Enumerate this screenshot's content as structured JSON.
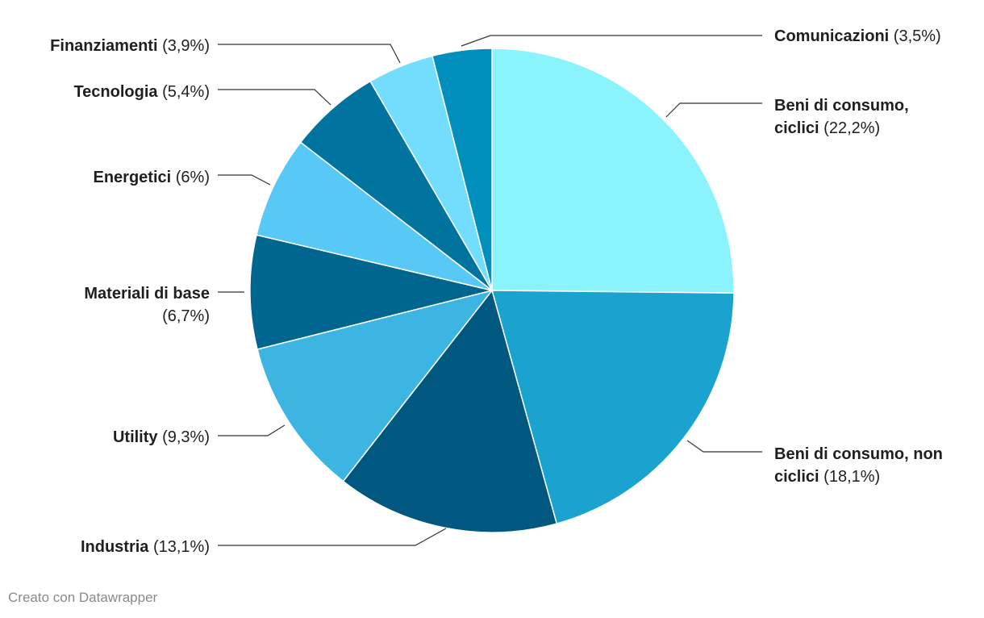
{
  "chart_data": {
    "type": "pie",
    "start_angle_deg": 0,
    "direction": "clockwise",
    "slices": [
      {
        "label_lines": [
          "Beni di consumo,",
          "ciclici"
        ],
        "value": 22.2,
        "value_text": "(22,2%)",
        "color": "#8bf3fe"
      },
      {
        "label_lines": [
          "Beni di consumo, non",
          "ciclici"
        ],
        "value": 18.1,
        "value_text": "(18,1%)",
        "color": "#1ba3cf"
      },
      {
        "label_lines": [
          "Industria"
        ],
        "value": 13.1,
        "value_text": "(13,1%)",
        "color": "#005780"
      },
      {
        "label_lines": [
          "Utility"
        ],
        "value": 9.3,
        "value_text": "(9,3%)",
        "color": "#3db5e3"
      },
      {
        "label_lines": [
          "Materiali di base"
        ],
        "value": 6.7,
        "value_text": "(6,7%)",
        "color": "#00668f",
        "value_on_new_line": true
      },
      {
        "label_lines": [
          "Energetici"
        ],
        "value": 6.0,
        "value_text": "(6%)",
        "color": "#58c8f6"
      },
      {
        "label_lines": [
          "Tecnologia"
        ],
        "value": 5.4,
        "value_text": "(5,4%)",
        "color": "#00749f"
      },
      {
        "label_lines": [
          "Finanziamenti"
        ],
        "value": 3.9,
        "value_text": "(3,9%)",
        "color": "#72ddfe"
      },
      {
        "label_lines": [
          "Comunicazioni"
        ],
        "value": 3.5,
        "value_text": "(3,5%)",
        "color": "#008fbc"
      }
    ]
  },
  "footer": {
    "credit": "Creato con Datawrapper"
  }
}
